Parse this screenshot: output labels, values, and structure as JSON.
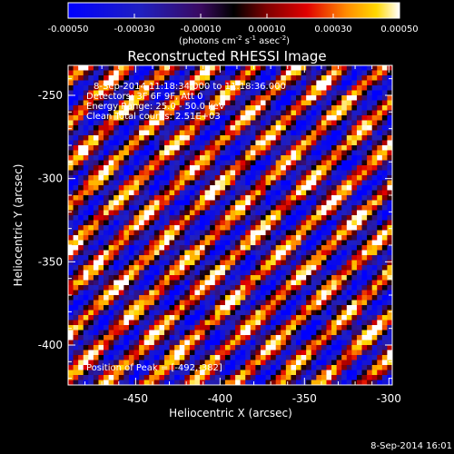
{
  "chart_data": {
    "type": "heatmap",
    "title": "Reconstructed RHESSI Image",
    "xlabel": "Heliocentric X (arcsec)",
    "ylabel": "Heliocentric Y (arcsec)",
    "xlim": [
      -490,
      -298
    ],
    "ylim": [
      -424,
      -232
    ],
    "xticks": [
      -450,
      -400,
      -350,
      -300
    ],
    "yticks": [
      -250,
      -300,
      -350,
      -400
    ],
    "colorbar": {
      "range": [
        -0.0005,
        0.0005
      ],
      "ticks": [
        "-0.00050",
        "-0.00030",
        "-0.00010",
        "0.00010",
        "0.00030",
        "0.00050"
      ],
      "unit_label_parts": [
        "(photons cm",
        "-2",
        " s",
        "-1",
        " asec",
        "-2",
        ")"
      ]
    },
    "annotations": {
      "time": "8-Sep-2014 11:18:34.000 to 11:18:36.000",
      "detectors": "Detectors: 3F 6F 9F, Att 0",
      "energy": "Energy Range: 25.0 - 50.0 keV",
      "clean": "Clean    Total counts: 2.51E+03",
      "peak": "Position of Peak = [-492,-382]"
    },
    "footer_timestamp": "8-Sep-2014 16:01",
    "pattern": "diagonal stripes, upper-left to lower-right, modulated pixel noise"
  }
}
